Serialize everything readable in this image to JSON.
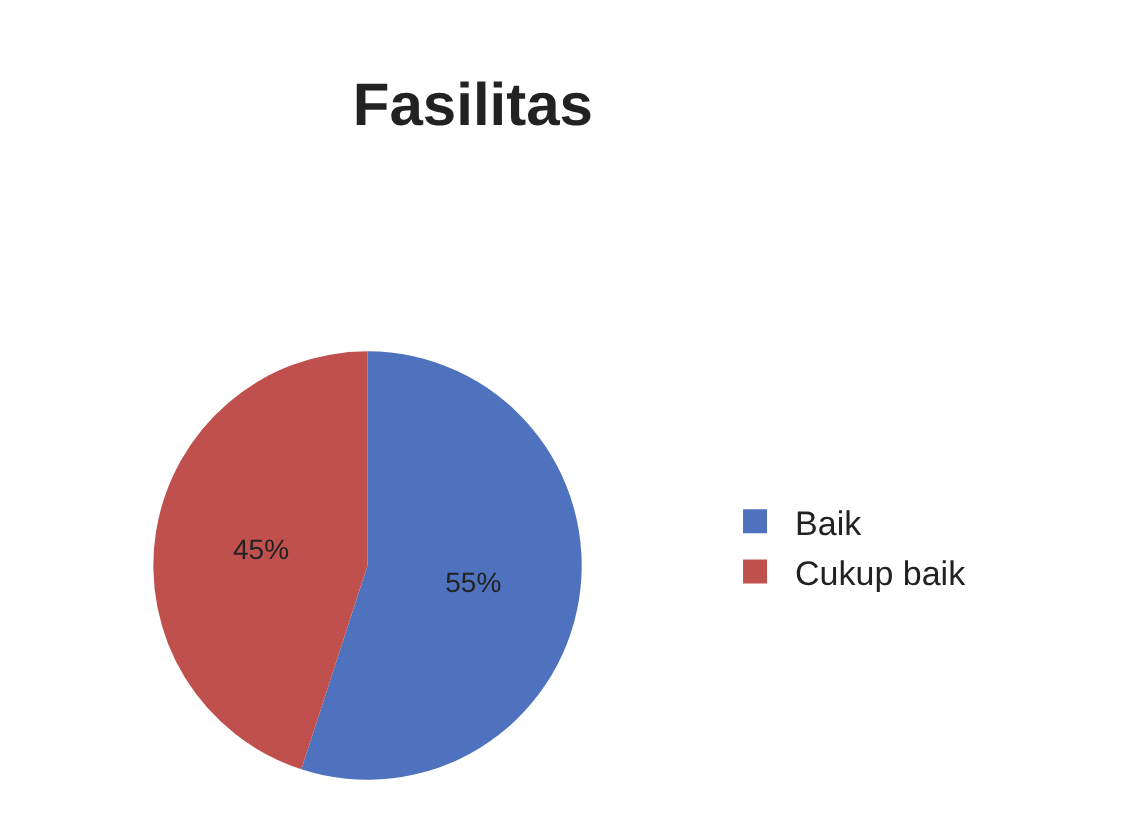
{
  "chart_data": {
    "type": "pie",
    "title": "Fasilitas",
    "categories": [
      "Baik",
      "Cukup baik"
    ],
    "values": [
      55,
      45
    ],
    "colors": [
      "#4f72be",
      "#c0504d"
    ],
    "value_labels": [
      "55%",
      "45%"
    ],
    "legend": "right"
  }
}
